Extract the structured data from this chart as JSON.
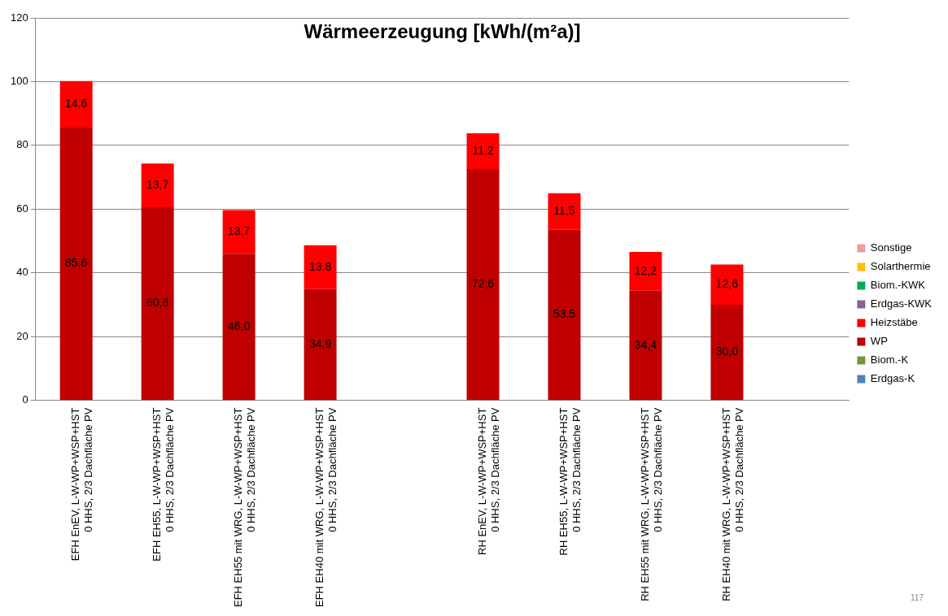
{
  "chart_data": {
    "type": "bar",
    "title": "Wärmeerzeugung [kWh/(m²a)]",
    "stacked": true,
    "categories": [
      "EFH EnEV, L-W-WP+WSP+HST\n0 HHS, 2/3 Dachfläche PV",
      "EFH EH55, L-W-WP+WSP+HST\n0 HHS, 2/3 Dachfläche PV",
      "EFH EH55 mit WRG, L-W-WP+WSP+HST\n0 HHS, 2/3 Dachfläche PV",
      "EFH EH40 mit WRG, L-W-WP+WSP+HST\n0 HHS, 2/3 Dachfläche PV",
      null,
      "RH EnEV, L-W-WP+WSP+HST\n0 HHS, 2/3 Dachfläche PV",
      "RH EH55, L-W-WP+WSP+HST\n0 HHS, 2/3 Dachfläche PV",
      "RH EH55 mit WRG, L-W-WP+WSP+HST\n0 HHS, 2/3 Dachfläche PV",
      "RH EH40 mit WRG, L-W-WP+WSP+HST\n0 HHS, 2/3 Dachfläche PV",
      null
    ],
    "series": [
      {
        "name": "Erdgas-K",
        "color": "#4f81bd",
        "values": [
          null,
          null,
          null,
          null,
          null,
          null,
          null,
          null,
          null,
          null
        ]
      },
      {
        "name": "Biom.-K",
        "color": "#77933c",
        "values": [
          null,
          null,
          null,
          null,
          null,
          null,
          null,
          null,
          null,
          null
        ]
      },
      {
        "name": "WP",
        "color": "#c00000",
        "values": [
          85.6,
          60.6,
          46.0,
          34.9,
          null,
          72.6,
          53.5,
          34.4,
          30.0,
          null
        ],
        "value_labels": [
          "85,6",
          "60,6",
          "46,0",
          "34,9",
          null,
          "72,6",
          "53,5",
          "34,4",
          "30,0",
          null
        ]
      },
      {
        "name": "Heizstäbe",
        "color": "#ff0000",
        "values": [
          14.6,
          13.7,
          13.7,
          13.8,
          null,
          11.2,
          11.5,
          12.2,
          12.6,
          null
        ],
        "value_labels": [
          "14,6",
          "13,7",
          "13,7",
          "13,8",
          null,
          "11,2",
          "11,5",
          "12,2",
          "12,6",
          null
        ]
      },
      {
        "name": "Erdgas-KWK",
        "color": "#8064a2",
        "values": [
          null,
          null,
          null,
          null,
          null,
          null,
          null,
          null,
          null,
          null
        ]
      },
      {
        "name": "Biom.-KWK",
        "color": "#00b050",
        "values": [
          null,
          null,
          null,
          null,
          null,
          null,
          null,
          null,
          null,
          null
        ]
      },
      {
        "name": "Solarthermie",
        "color": "#ffc000",
        "values": [
          null,
          null,
          null,
          null,
          null,
          null,
          null,
          null,
          null,
          null
        ]
      },
      {
        "name": "Sonstige",
        "color": "#e6a0a0",
        "values": [
          null,
          null,
          null,
          null,
          null,
          null,
          null,
          null,
          null,
          null
        ]
      }
    ],
    "ylim": [
      0,
      120
    ],
    "yticks": [
      0,
      20,
      40,
      60,
      80,
      100,
      120
    ],
    "grid": "y",
    "legend": "right",
    "annotations": [
      "117"
    ]
  }
}
